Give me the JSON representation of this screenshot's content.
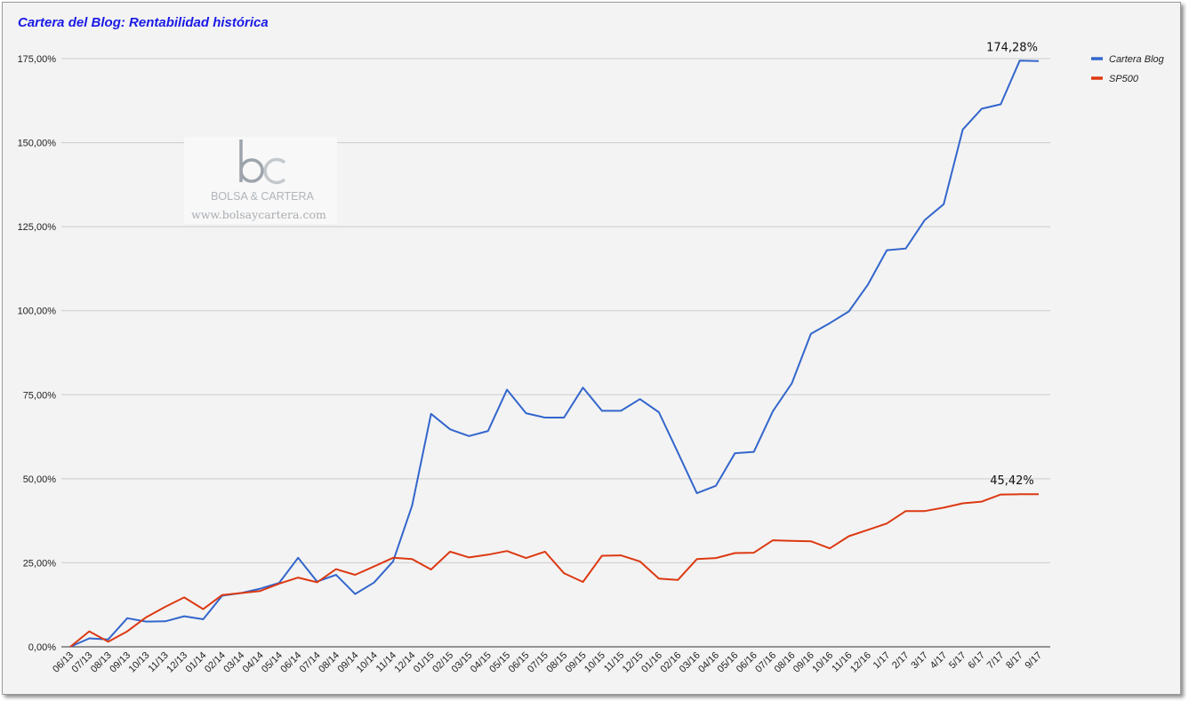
{
  "chart_data": {
    "type": "line",
    "title": "Cartera del Blog: Rentabilidad histórica",
    "xlabel": "",
    "ylabel": "",
    "ylim": [
      0,
      175
    ],
    "y_ticks": [
      "0,00%",
      "25,00%",
      "50,00%",
      "75,00%",
      "100,00%",
      "125,00%",
      "150,00%",
      "175,00%"
    ],
    "grid": true,
    "legend_position": "top-right",
    "categories": [
      "06/13",
      "07/13",
      "08/13",
      "09/13",
      "10/13",
      "11/13",
      "12/13",
      "01/14",
      "02/14",
      "03/14",
      "04/14",
      "05/14",
      "06/14",
      "07/14",
      "08/14",
      "09/14",
      "10/14",
      "11/14",
      "12/14",
      "01/15",
      "02/15",
      "03/15",
      "04/15",
      "05/15",
      "06/15",
      "07/15",
      "08/15",
      "09/15",
      "10/15",
      "11/15",
      "12/15",
      "01/16",
      "02/16",
      "03/16",
      "04/16",
      "05/16",
      "06/16",
      "07/16",
      "08/16",
      "09/16",
      "10/16",
      "11/16",
      "12/16",
      "1/17",
      "2/17",
      "3/17",
      "4/17",
      "5/17",
      "6/17",
      "7/17",
      "8/17",
      "9/17"
    ],
    "series": [
      {
        "name": "Cartera Blog",
        "color": "#3366cc",
        "values": [
          0,
          2.5,
          2.2,
          8.5,
          7.5,
          7.6,
          9.1,
          8.2,
          15.2,
          16,
          17.3,
          19,
          26.5,
          19.4,
          21.4,
          15.7,
          19.1,
          25.4,
          42,
          69.3,
          64.7,
          62.7,
          64.2,
          76.5,
          69.5,
          68.2,
          68.2,
          77.1,
          70.2,
          70.2,
          73.7,
          69.8,
          57.8,
          45.7,
          47.9,
          57.6,
          58,
          70.1,
          78.4,
          93.1,
          96.3,
          99.8,
          107.7,
          118,
          118.5,
          127,
          131.7,
          153.9,
          160.1,
          161.4,
          174.4,
          174.28
        ]
      },
      {
        "name": "SP500",
        "color": "#dc3912",
        "values": [
          0,
          4.6,
          1.5,
          4.6,
          8.8,
          11.9,
          14.7,
          11.2,
          15.4,
          16,
          16.6,
          18.8,
          20.6,
          19.2,
          23.1,
          21.4,
          23.9,
          26.5,
          26.1,
          23,
          28.3,
          26.6,
          27.4,
          28.5,
          26.4,
          28.3,
          21.9,
          19.3,
          27.1,
          27.2,
          25.4,
          20.3,
          19.9,
          26.1,
          26.4,
          27.9,
          28,
          31.7,
          31.5,
          31.4,
          29.3,
          32.9,
          34.8,
          36.7,
          40.4,
          40.4,
          41.4,
          42.7,
          43.2,
          45.3,
          45.4,
          45.42
        ]
      }
    ],
    "annotations": [
      {
        "label": "174,28%",
        "series": "Cartera Blog"
      },
      {
        "label": "45,42%",
        "series": "SP500"
      }
    ]
  },
  "watermark": {
    "logo_letters": "bc",
    "brand": "BOLSA & CARTERA",
    "url": "www.bolsaycartera.com"
  }
}
